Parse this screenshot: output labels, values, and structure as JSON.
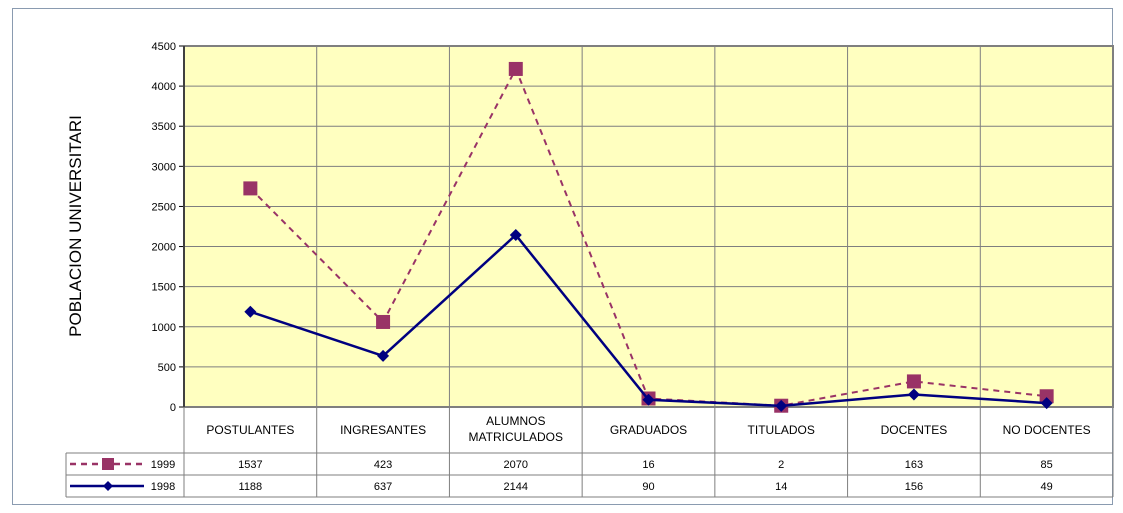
{
  "chart_data": {
    "type": "line",
    "title": "",
    "ylabel": "POBLACION UNIVERSITARI",
    "xlabel": "",
    "ylim": [
      0,
      4500
    ],
    "ytick_step": 500,
    "grid": true,
    "categories": [
      [
        "POSTULANTES"
      ],
      [
        "INGRESANTES"
      ],
      [
        "ALUMNOS",
        "MATRICULADOS"
      ],
      [
        "GRADUADOS"
      ],
      [
        "TITULADOS"
      ],
      [
        "DOCENTES"
      ],
      [
        "NO DOCENTES"
      ]
    ],
    "plot_values": [
      {
        "name": "1999",
        "values": [
          2725,
          1060,
          4214,
          106,
          16,
          319,
          134
        ]
      },
      {
        "name": "1998",
        "values": [
          1188,
          637,
          2144,
          90,
          14,
          156,
          49
        ]
      }
    ],
    "series": [
      {
        "name": "1999",
        "color": "#993366",
        "line": "dashed",
        "marker": "square",
        "values": [
          1537,
          423,
          2070,
          16,
          2,
          163,
          85
        ]
      },
      {
        "name": "1998",
        "color": "#000080",
        "line": "solid",
        "marker": "diamond",
        "values": [
          1188,
          637,
          2144,
          90,
          14,
          156,
          49
        ]
      }
    ],
    "data_table": true,
    "plot_background": "#ffffc0"
  }
}
